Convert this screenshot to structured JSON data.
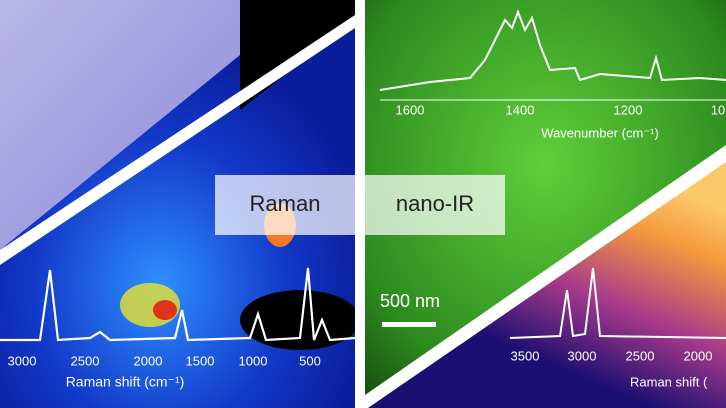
{
  "left_panel": {
    "label": "Raman",
    "ticks": [
      "3000",
      "2500",
      "2000",
      "1500",
      "1000",
      "500"
    ],
    "axis_title": "Raman shift (cm⁻¹)"
  },
  "right_panel": {
    "label": "nano-IR",
    "scale_bar": "500 nm",
    "top_spectrum": {
      "ticks": [
        "1600",
        "1400",
        "1200",
        "10"
      ],
      "axis_title": "Wavenumber (cm⁻¹)"
    },
    "bottom_spectrum": {
      "ticks": [
        "3500",
        "3000",
        "2500",
        "2000"
      ],
      "axis_title": "Raman shift ("
    }
  }
}
